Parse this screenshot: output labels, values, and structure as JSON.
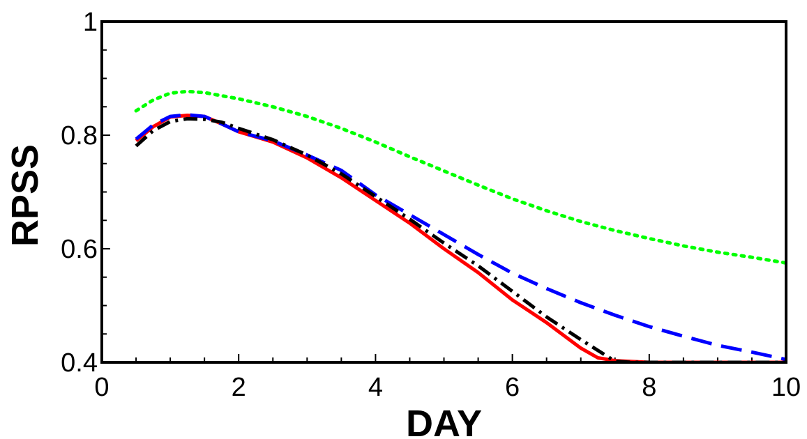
{
  "chart_data": {
    "type": "line",
    "title": "",
    "xlabel": "DAY",
    "ylabel": "RPSS",
    "xlim": [
      0,
      10
    ],
    "ylim": [
      0.4,
      1.0
    ],
    "xticks": [
      0,
      2,
      4,
      6,
      8,
      10
    ],
    "xtick_labels": [
      "0",
      "2",
      "4",
      "6",
      "8",
      "10"
    ],
    "yticks": [
      0.4,
      0.6,
      0.8,
      1.0
    ],
    "ytick_labels": [
      "0.4",
      "0.6",
      "0.8",
      "1"
    ],
    "grid": false,
    "legend": "none",
    "series": [
      {
        "color": "#00ff00",
        "style": "dotted",
        "x": [
          0.5,
          0.75,
          1.0,
          1.25,
          1.5,
          2.0,
          2.5,
          3.0,
          3.5,
          4.0,
          4.5,
          5.0,
          5.5,
          6.0,
          6.5,
          7.0,
          7.5,
          8.0,
          8.5,
          9.0,
          9.5,
          10.0
        ],
        "y": [
          0.843,
          0.862,
          0.874,
          0.877,
          0.875,
          0.864,
          0.85,
          0.833,
          0.812,
          0.788,
          0.762,
          0.737,
          0.712,
          0.688,
          0.667,
          0.648,
          0.632,
          0.618,
          0.605,
          0.594,
          0.585,
          0.575
        ]
      },
      {
        "color": "#ff0000",
        "style": "solid",
        "x": [
          0.5,
          0.75,
          1.0,
          1.25,
          1.5,
          1.75,
          2.0,
          2.5,
          3.0,
          3.5,
          4.0,
          4.5,
          5.0,
          5.5,
          6.0,
          6.5,
          7.0,
          7.25,
          7.5,
          8.0,
          8.5,
          9.0,
          9.5,
          10.0
        ],
        "y": [
          0.79,
          0.815,
          0.832,
          0.835,
          0.833,
          0.82,
          0.806,
          0.788,
          0.76,
          0.725,
          0.685,
          0.645,
          0.6,
          0.558,
          0.51,
          0.47,
          0.425,
          0.408,
          0.403,
          0.4,
          0.4,
          0.4,
          0.4,
          0.4
        ]
      },
      {
        "color": "#0000ff",
        "style": "dashed",
        "x": [
          0.5,
          0.75,
          1.0,
          1.25,
          1.5,
          1.75,
          2.0,
          2.5,
          3.0,
          3.5,
          4.0,
          4.5,
          5.0,
          5.5,
          6.0,
          6.5,
          7.0,
          7.5,
          8.0,
          8.5,
          9.0,
          9.5,
          10.0
        ],
        "y": [
          0.793,
          0.818,
          0.833,
          0.836,
          0.833,
          0.82,
          0.806,
          0.79,
          0.765,
          0.738,
          0.695,
          0.66,
          0.625,
          0.59,
          0.557,
          0.53,
          0.505,
          0.483,
          0.463,
          0.446,
          0.43,
          0.418,
          0.405
        ]
      },
      {
        "color": "#000000",
        "style": "dashdot",
        "x": [
          0.5,
          0.75,
          1.0,
          1.25,
          1.5,
          1.75,
          2.0,
          2.5,
          3.0,
          3.5,
          4.0,
          4.5,
          5.0,
          5.5,
          6.0,
          6.5,
          7.0,
          7.5,
          7.75,
          8.0,
          8.5,
          9.0,
          9.5,
          10.0
        ],
        "y": [
          0.781,
          0.808,
          0.824,
          0.829,
          0.828,
          0.823,
          0.812,
          0.792,
          0.765,
          0.732,
          0.692,
          0.652,
          0.61,
          0.57,
          0.525,
          0.48,
          0.44,
          0.402,
          0.4,
          0.4,
          0.4,
          0.4,
          0.4,
          0.4
        ]
      }
    ]
  }
}
